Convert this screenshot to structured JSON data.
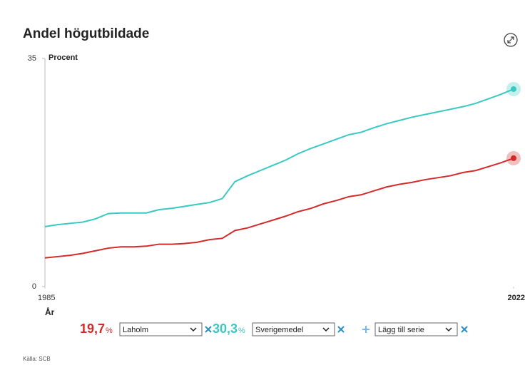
{
  "chart_data": {
    "type": "line",
    "title": "Andel högutbildade",
    "y_label": "Procent",
    "x_label": "År",
    "source": "Källa: SCB",
    "add_series_label": "Lägg till serie",
    "unit": "%",
    "x": [
      1985,
      1986,
      1987,
      1988,
      1989,
      1990,
      1991,
      1992,
      1993,
      1994,
      1995,
      1996,
      1997,
      1998,
      1999,
      2000,
      2001,
      2002,
      2003,
      2004,
      2005,
      2006,
      2007,
      2008,
      2009,
      2010,
      2011,
      2012,
      2013,
      2014,
      2015,
      2016,
      2017,
      2018,
      2019,
      2020,
      2021,
      2022
    ],
    "xlim": [
      1985,
      2022
    ],
    "xticks": [
      1985,
      2022
    ],
    "ylim": [
      0,
      35
    ],
    "yticks": [
      0,
      35
    ],
    "series": [
      {
        "name": "Laholm",
        "color": "#d42a2a",
        "end_label": "19,7",
        "values": [
          4.4,
          4.6,
          4.8,
          5.1,
          5.5,
          5.9,
          6.1,
          6.1,
          6.2,
          6.5,
          6.5,
          6.6,
          6.8,
          7.2,
          7.4,
          8.6,
          9.0,
          9.6,
          10.2,
          10.8,
          11.5,
          12.0,
          12.7,
          13.2,
          13.8,
          14.1,
          14.7,
          15.3,
          15.7,
          16.0,
          16.4,
          16.7,
          17.0,
          17.5,
          17.8,
          18.4,
          19.0,
          19.7
        ]
      },
      {
        "name": "Sverigemedel",
        "color": "#38c9c3",
        "end_label": "30,3",
        "values": [
          9.2,
          9.5,
          9.7,
          9.9,
          10.4,
          11.2,
          11.3,
          11.3,
          11.3,
          11.8,
          12.0,
          12.3,
          12.6,
          12.9,
          13.5,
          16.1,
          17.0,
          17.8,
          18.6,
          19.4,
          20.4,
          21.2,
          21.9,
          22.6,
          23.3,
          23.7,
          24.4,
          25.0,
          25.5,
          26.0,
          26.4,
          26.8,
          27.2,
          27.6,
          28.1,
          28.8,
          29.5,
          30.3
        ]
      }
    ]
  }
}
